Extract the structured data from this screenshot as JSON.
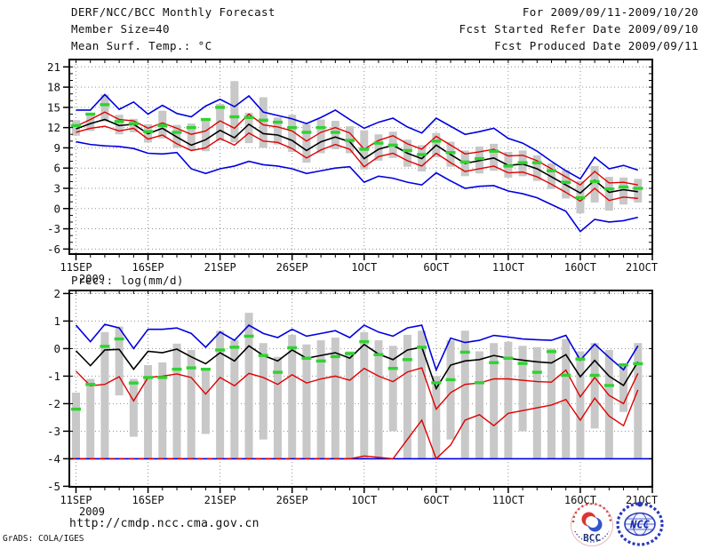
{
  "header": {
    "title": "DERF/NCC/BCC Monthly Forecast",
    "member_size": "Member Size=40",
    "panel1_label": "Mean Surf. Temp.: °C",
    "valid_range": "For 2009/09/11-2009/10/20",
    "refer_date": "Fcst Started Refer Date 2009/09/10",
    "produced_date": "Fcst Produced Date 2009/09/11"
  },
  "panel2_label": "Prec.: log(mm/d)",
  "footer": {
    "url": "http://cmdp.ncc.cma.gov.cn",
    "grads_credit": "GrADS: COLA/IGES",
    "logo_bcc": "BCC",
    "logo_ncc": "NCC"
  },
  "colors": {
    "line_blue": "#0000e0",
    "line_red": "#e00000",
    "line_black": "#000000",
    "marker_green": "#2fd32f",
    "bar_gray": "#c8c8c8",
    "grid_gray": "#909090",
    "axis_black": "#000000"
  },
  "chart_data": [
    {
      "type": "line",
      "panel": "surface-temperature",
      "title": "Mean Surf. Temp.: °C",
      "n_days": 40,
      "start_date": "11SEP2009",
      "end_date": "20OCT2009",
      "x_ticks": [
        {
          "day": 0,
          "label": "11SEP",
          "sublabel": "2009"
        },
        {
          "day": 5,
          "label": "16SEP"
        },
        {
          "day": 10,
          "label": "21SEP"
        },
        {
          "day": 15,
          "label": "26SEP"
        },
        {
          "day": 20,
          "label": "1OCT"
        },
        {
          "day": 25,
          "label": "6OCT"
        },
        {
          "day": 30,
          "label": "11OCT"
        },
        {
          "day": 35,
          "label": "16OCT"
        },
        {
          "day": 40,
          "label": "21OCT"
        }
      ],
      "ylim": [
        -6,
        21
      ],
      "yticks": [
        21,
        18,
        15,
        12,
        9,
        6,
        3,
        0,
        -3,
        -6
      ],
      "grid": true,
      "bars": {
        "name": "ensemble-spread-bar",
        "top": [
          13.1,
          14.1,
          16.9,
          13.9,
          13.3,
          12.5,
          14.5,
          12.4,
          12.6,
          13.0,
          15.5,
          18.9,
          14.2,
          16.5,
          13.5,
          13.9,
          12.5,
          13.2,
          13.0,
          12.2,
          11.6,
          11.0,
          11.4,
          10.2,
          9.4,
          11.2,
          9.9,
          8.6,
          9.2,
          9.6,
          8.4,
          8.6,
          7.9,
          6.7,
          5.7,
          4.1,
          6.3,
          4.7,
          4.6,
          4.4
        ],
        "bottom": [
          10.8,
          11.5,
          12.9,
          11.0,
          11.3,
          9.8,
          10.4,
          9.0,
          8.7,
          8.5,
          10.0,
          9.8,
          9.7,
          9.0,
          9.5,
          8.4,
          6.8,
          8.2,
          8.8,
          8.2,
          5.8,
          7.1,
          7.5,
          6.2,
          5.5,
          7.6,
          6.2,
          4.8,
          5.2,
          5.6,
          4.6,
          4.8,
          4.1,
          2.9,
          1.5,
          -0.7,
          0.9,
          -0.3,
          0.6,
          0.9
        ]
      },
      "markers": {
        "name": "observation",
        "values": [
          12.3,
          14.0,
          15.4,
          12.9,
          12.6,
          11.4,
          12.3,
          11.3,
          12.0,
          13.2,
          15.0,
          13.6,
          13.5,
          13.1,
          12.8,
          12.0,
          11.3,
          12.0,
          11.3,
          10.1,
          8.8,
          9.7,
          9.4,
          8.6,
          8.0,
          10.0,
          8.3,
          6.9,
          7.4,
          8.5,
          6.3,
          6.8,
          6.8,
          5.6,
          3.9,
          1.6,
          4.0,
          2.9,
          3.2,
          3.0
        ]
      },
      "series": [
        {
          "name": "ensemble-max",
          "color_key": "blue",
          "values": [
            14.6,
            14.6,
            16.9,
            14.7,
            15.8,
            14.0,
            15.3,
            14.1,
            13.6,
            15.2,
            16.2,
            15.1,
            16.7,
            14.3,
            13.8,
            13.3,
            12.6,
            13.5,
            14.6,
            13.2,
            11.9,
            12.8,
            13.4,
            12.1,
            11.2,
            13.4,
            12.2,
            11.0,
            11.4,
            11.9,
            10.4,
            9.7,
            8.5,
            7.0,
            5.6,
            4.4,
            7.6,
            5.9,
            6.4,
            5.7
          ]
        },
        {
          "name": "spread-upper",
          "color_key": "red",
          "values": [
            12.2,
            13.2,
            14.3,
            13.2,
            13.0,
            11.9,
            12.7,
            11.9,
            11.0,
            11.5,
            13.0,
            11.9,
            14.0,
            12.4,
            12.1,
            11.5,
            10.0,
            11.3,
            12.0,
            11.2,
            8.8,
            10.1,
            10.8,
            9.6,
            8.8,
            10.7,
            9.4,
            8.1,
            8.4,
            8.8,
            7.8,
            7.9,
            7.1,
            5.9,
            4.7,
            3.5,
            5.5,
            3.8,
            3.9,
            3.5
          ]
        },
        {
          "name": "ensemble-mean",
          "color_key": "black",
          "values": [
            11.8,
            12.6,
            13.2,
            12.3,
            12.5,
            11.1,
            11.9,
            10.6,
            9.4,
            10.2,
            11.6,
            10.5,
            12.5,
            11.1,
            10.9,
            10.1,
            8.6,
            9.9,
            10.6,
            9.9,
            7.4,
            8.8,
            9.4,
            8.2,
            7.4,
            9.4,
            8.0,
            6.7,
            7.1,
            7.5,
            6.4,
            6.6,
            5.9,
            4.7,
            3.5,
            2.3,
            4.2,
            2.4,
            2.8,
            2.5
          ]
        },
        {
          "name": "spread-lower",
          "color_key": "red",
          "values": [
            11.3,
            11.9,
            12.2,
            11.5,
            11.9,
            10.3,
            10.9,
            9.6,
            8.6,
            9.0,
            10.4,
            9.4,
            11.2,
            10.0,
            9.8,
            8.9,
            7.5,
            8.7,
            9.5,
            8.8,
            6.2,
            7.7,
            8.2,
            7.1,
            6.3,
            8.2,
            6.8,
            5.5,
            5.9,
            6.3,
            5.3,
            5.4,
            4.7,
            3.6,
            2.4,
            1.1,
            3.0,
            1.2,
            1.7,
            1.5
          ]
        },
        {
          "name": "ensemble-min",
          "color_key": "blue",
          "values": [
            9.9,
            9.5,
            9.3,
            9.2,
            8.9,
            8.2,
            8.1,
            8.3,
            5.9,
            5.2,
            5.9,
            6.3,
            7.0,
            6.5,
            6.3,
            5.9,
            5.2,
            5.6,
            6.0,
            6.2,
            3.9,
            4.8,
            4.5,
            3.9,
            3.5,
            5.3,
            4.1,
            3.0,
            3.3,
            3.4,
            2.6,
            2.2,
            1.6,
            0.6,
            -0.4,
            -3.4,
            -1.6,
            -2.0,
            -1.8,
            -1.3
          ]
        }
      ]
    },
    {
      "type": "line",
      "panel": "precipitation",
      "title": "Prec.: log(mm/d)",
      "n_days": 40,
      "start_date": "11SEP2009",
      "end_date": "20OCT2009",
      "x_ticks": [
        {
          "day": 0,
          "label": "11SEP",
          "sublabel": "2009"
        },
        {
          "day": 5,
          "label": "16SEP"
        },
        {
          "day": 10,
          "label": "21SEP"
        },
        {
          "day": 15,
          "label": "26SEP"
        },
        {
          "day": 20,
          "label": "1OCT"
        },
        {
          "day": 25,
          "label": "6OCT"
        },
        {
          "day": 30,
          "label": "11OCT"
        },
        {
          "day": 35,
          "label": "16OCT"
        },
        {
          "day": 40,
          "label": "21OCT"
        }
      ],
      "ylim": [
        -5,
        2
      ],
      "yticks": [
        2,
        1,
        0,
        -1,
        -2,
        -3,
        -4,
        -5
      ],
      "grid": true,
      "floor_line": {
        "value": -4,
        "name": "zero-precip-floor"
      },
      "bars": {
        "name": "ensemble-spread-bar",
        "top": [
          -1.6,
          -1.1,
          0.6,
          0.8,
          -1.1,
          -0.6,
          -0.5,
          0.18,
          -0.05,
          -0.8,
          0.65,
          0.3,
          1.3,
          0.2,
          -0.3,
          0.5,
          0.15,
          0.3,
          0.4,
          -0.1,
          0.6,
          0.3,
          0.1,
          0.5,
          0.65,
          -1.0,
          0.3,
          0.65,
          -0.1,
          0.2,
          0.25,
          0.1,
          0.05,
          0.0,
          0.35,
          -0.1,
          0.2,
          -0.05,
          -0.55,
          0.2
        ],
        "bottom": [
          -4,
          -4,
          -4,
          -1.7,
          -3.2,
          -4,
          -4,
          -4,
          -4,
          -3.1,
          -4,
          -4,
          -4,
          -3.3,
          -4,
          -4,
          -4,
          -4,
          -4,
          -4,
          -4,
          -4,
          -3.0,
          -4,
          -4,
          -4,
          -3.3,
          -4,
          -4,
          -4,
          -4,
          -3.0,
          -4,
          -4,
          -4,
          -4,
          -2.9,
          -4,
          -2.3,
          -4
        ]
      },
      "markers": {
        "name": "observation",
        "values": [
          -2.2,
          -1.3,
          0.08,
          0.35,
          -1.25,
          -1.05,
          -1.05,
          -0.75,
          -0.7,
          -0.75,
          -0.05,
          0.05,
          0.45,
          -0.25,
          -0.86,
          0.03,
          -0.35,
          -0.45,
          -0.29,
          -0.18,
          0.25,
          -0.22,
          -0.72,
          -0.4,
          0.05,
          -1.24,
          -1.13,
          -0.13,
          -1.24,
          -0.51,
          -0.35,
          -0.54,
          -0.86,
          -0.11,
          -0.97,
          -0.38,
          -0.97,
          -1.34,
          -0.59,
          -0.55
        ]
      },
      "series": [
        {
          "name": "ensemble-max",
          "color_key": "blue",
          "values": [
            0.85,
            0.25,
            0.88,
            0.75,
            0.0,
            0.7,
            0.7,
            0.75,
            0.55,
            0.05,
            0.6,
            0.3,
            0.85,
            0.55,
            0.4,
            0.7,
            0.45,
            0.55,
            0.65,
            0.4,
            0.85,
            0.6,
            0.45,
            0.75,
            0.85,
            -0.78,
            0.38,
            0.22,
            0.3,
            0.48,
            0.42,
            0.35,
            0.32,
            0.3,
            0.48,
            -0.42,
            0.16,
            -0.32,
            -0.77,
            0.1
          ]
        },
        {
          "name": "ensemble-mean",
          "color_key": "black",
          "values": [
            -0.08,
            -0.62,
            -0.05,
            -0.03,
            -0.75,
            -0.1,
            -0.15,
            -0.02,
            -0.3,
            -0.55,
            -0.15,
            -0.45,
            0.1,
            -0.25,
            -0.45,
            -0.05,
            -0.35,
            -0.25,
            -0.15,
            -0.35,
            0.15,
            -0.2,
            -0.4,
            -0.05,
            0.05,
            -1.45,
            -0.6,
            -0.45,
            -0.4,
            -0.25,
            -0.35,
            -0.42,
            -0.48,
            -0.52,
            -0.22,
            -1.02,
            -0.43,
            -1.0,
            -1.34,
            -0.48
          ]
        },
        {
          "name": "spread-upper",
          "color_key": "red",
          "values": [
            -0.82,
            -1.35,
            -1.3,
            -1.02,
            -1.9,
            -1.05,
            -1.0,
            -0.92,
            -1.05,
            -1.65,
            -1.05,
            -1.35,
            -0.9,
            -1.05,
            -1.3,
            -0.95,
            -1.25,
            -1.1,
            -1.0,
            -1.15,
            -0.72,
            -1.0,
            -1.2,
            -0.85,
            -0.7,
            -2.2,
            -1.6,
            -1.3,
            -1.25,
            -1.1,
            -1.1,
            -1.15,
            -1.2,
            -1.22,
            -0.78,
            -1.75,
            -1.05,
            -1.7,
            -2.0,
            -0.9
          ]
        },
        {
          "name": "spread-lower",
          "color_key": "red",
          "floor_split": 19,
          "values": [
            -4,
            -4,
            -4,
            -4,
            -4,
            -4,
            -4,
            -4,
            -4,
            -4,
            -4,
            -4,
            -4,
            -4,
            -4,
            -4,
            -4,
            -4,
            -4,
            -4,
            -3.9,
            -3.95,
            -4.0,
            -3.3,
            -2.6,
            -4.0,
            -3.5,
            -2.6,
            -2.4,
            -2.8,
            -2.35,
            -2.25,
            -2.15,
            -2.05,
            -1.85,
            -2.6,
            -1.8,
            -2.45,
            -2.8,
            -1.5
          ]
        }
      ]
    }
  ]
}
